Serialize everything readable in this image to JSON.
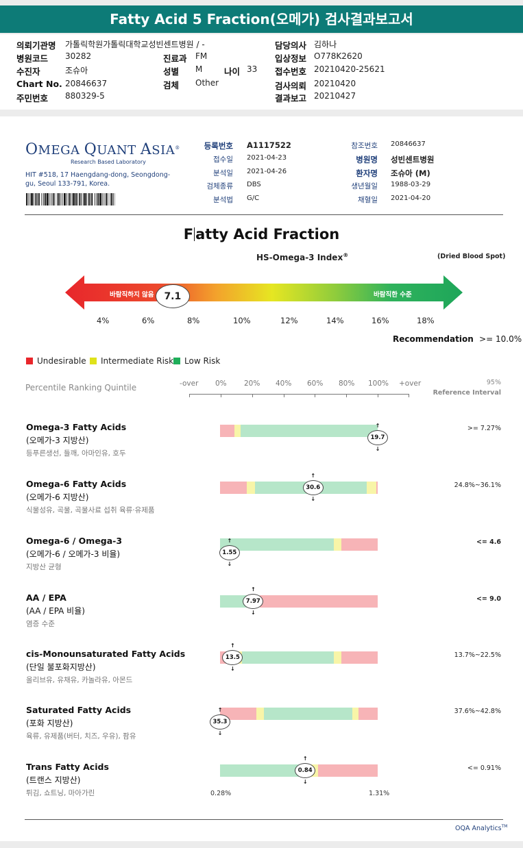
{
  "title": "Fatty Acid 5 Fraction(오메가) 검사결과보고서",
  "patient_info": {
    "left": [
      {
        "label": "의뢰기관명",
        "value": "가톨릭학원가톨릭대학교성빈센트병원 / -"
      },
      {
        "label": "병원코드",
        "value": "30282"
      },
      {
        "label": "수진자",
        "value": "조슈아"
      },
      {
        "label": "Chart No.",
        "value": "20846637"
      },
      {
        "label": "주민번호",
        "value": "880329-5"
      }
    ],
    "dept": {
      "label": "진료과",
      "value": "FM"
    },
    "sex": {
      "label": "성별",
      "value": "M"
    },
    "age": {
      "label": "나이",
      "value": "33"
    },
    "specimen": {
      "label": "검체",
      "value": "Other"
    },
    "right": [
      {
        "label": "담당의사",
        "value": "김하나"
      },
      {
        "label": "입상정보",
        "value": "O778K2620"
      },
      {
        "label": "접수번호",
        "value": "20210420-25621"
      },
      {
        "label": "검사의뢰",
        "value": "20210420"
      },
      {
        "label": "결과보고",
        "value": "20210427"
      }
    ]
  },
  "lab": {
    "logo_big1": "O",
    "logo_small1": "MEGA ",
    "logo_big2": "Q",
    "logo_small2": "UANT ",
    "logo_big3": "A",
    "logo_small3": "SIA",
    "logo_mark": "®",
    "subtitle": "Research Based Laboratory",
    "address": "HIT #518, 17 Haengdang-dong, Seongdong-gu, Seoul 133-791, Korea."
  },
  "meta_left": [
    {
      "label": "등록번호",
      "value": "A1117522",
      "bold": true
    },
    {
      "label": "접수일",
      "value": "2021-04-23",
      "bold": false
    },
    {
      "label": "분석일",
      "value": "2021-04-26",
      "bold": false
    },
    {
      "label": "검체종류",
      "value": "DBS",
      "bold": false
    },
    {
      "label": "분석법",
      "value": "G/C",
      "bold": false
    }
  ],
  "meta_right": [
    {
      "label": "참조번호",
      "value": "20846637",
      "bold": false
    },
    {
      "label": "병원명",
      "value": "성빈센트병원",
      "bold": true
    },
    {
      "label": "환자명",
      "value": "조슈아 (M)",
      "bold": true
    },
    {
      "label": "생년월일",
      "value": "1988-03-29",
      "bold": false
    },
    {
      "label": "채혈일",
      "value": "2021-04-20",
      "bold": false
    }
  ],
  "fa_title_a": "F",
  "fa_title_b": "atty Acid Fraction",
  "hs_index": {
    "title": "HS-Omega-3 Index",
    "title_mark": "®",
    "sample": "(Dried Blood Spot)",
    "value": 7.1,
    "value_label": "7.1",
    "left_label": "바람직하지 않음",
    "right_label": "바람직한 수준",
    "scale_min": 3,
    "scale_max": 19,
    "ticks": [
      "4%",
      "6%",
      "8%",
      "10%",
      "12%",
      "14%",
      "16%",
      "18%"
    ],
    "recommendation_label": "Recommendation",
    "recommendation_value": ">= 10.0%"
  },
  "legend": [
    {
      "label": "Undesirable",
      "color": "#e8262b"
    },
    {
      "label": "Intermediate Risk",
      "color": "#dfe21a"
    },
    {
      "label": "Low Risk",
      "color": "#1fae5a"
    }
  ],
  "percentile": {
    "label": "Percentile Ranking Quintile",
    "scale": [
      "-over",
      "0%",
      "20%",
      "40%",
      "60%",
      "80%",
      "100%",
      "+over"
    ],
    "ref_95": "95%",
    "ref_label": "Reference Interval"
  },
  "colors": {
    "red": "#f7b4b7",
    "yellow": "#f8f5a8",
    "green": "#b6e6c9"
  },
  "results": [
    {
      "title": "Omega-3 Fatty Acids",
      "sub": "(오메가-3 지방산)",
      "examples": "등푸른생선, 들깨, 아마인유, 호두",
      "value_label": "19.7",
      "marker_pct": 100,
      "ref": ">= 7.27%",
      "ref_bold": false,
      "segments": [
        {
          "c": "red",
          "w": 9
        },
        {
          "c": "yellow",
          "w": 4
        },
        {
          "c": "green",
          "w": 87
        }
      ]
    },
    {
      "title": "Omega-6 Fatty Acids",
      "sub": "(오메가-6 지방산)",
      "examples": "식물성유, 곡물, 곡물사료 섭취 육류·유제품",
      "value_label": "30.6",
      "marker_pct": 59,
      "ref": "24.8%~36.1%",
      "ref_bold": false,
      "segments": [
        {
          "c": "red",
          "w": 17
        },
        {
          "c": "yellow",
          "w": 5
        },
        {
          "c": "green",
          "w": 71
        },
        {
          "c": "yellow",
          "w": 6
        },
        {
          "c": "red",
          "w": 1
        }
      ]
    },
    {
      "title": "Omega-6 / Omega-3",
      "sub": "(오메가-6 / 오메가-3 비율)",
      "examples": "지방산 균형",
      "value_label": "1.55",
      "marker_pct": 6,
      "ref": "<= 4.6",
      "ref_bold": true,
      "segments": [
        {
          "c": "green",
          "w": 72
        },
        {
          "c": "yellow",
          "w": 5
        },
        {
          "c": "red",
          "w": 23
        }
      ]
    },
    {
      "title": "AA / EPA",
      "sub": "(AA / EPA 비율)",
      "examples": "염증 수준",
      "value_label": "7.97",
      "marker_pct": 21,
      "ref": "<= 9.0",
      "ref_bold": true,
      "segments": [
        {
          "c": "green",
          "w": 21
        },
        {
          "c": "yellow",
          "w": 4
        },
        {
          "c": "red",
          "w": 75
        }
      ]
    },
    {
      "title": "cis-Monounsaturated Fatty Acids",
      "sub": "(단일 불포화지방산)",
      "examples": "올리브유, 유채유, 카놀라유, 아몬드",
      "value_label": "13.5",
      "marker_pct": 8,
      "ref": "13.7%~22.5%",
      "ref_bold": false,
      "segments": [
        {
          "c": "red",
          "w": 10
        },
        {
          "c": "yellow",
          "w": 4
        },
        {
          "c": "green",
          "w": 58
        },
        {
          "c": "yellow",
          "w": 5
        },
        {
          "c": "red",
          "w": 23
        }
      ]
    },
    {
      "title": "Saturated Fatty Acids",
      "sub": "(포화 지방산)",
      "examples": "육류, 유제품(버터, 치즈, 우유), 팜유",
      "value_label": "35.3",
      "marker_pct": 0,
      "ref": "37.6%~42.8%",
      "ref_bold": false,
      "segments": [
        {
          "c": "red",
          "w": 23
        },
        {
          "c": "yellow",
          "w": 5
        },
        {
          "c": "green",
          "w": 56
        },
        {
          "c": "yellow",
          "w": 4
        },
        {
          "c": "red",
          "w": 12
        }
      ]
    },
    {
      "title": "Trans Fatty Acids",
      "sub": "(트랜스 지방산)",
      "examples": "튀김, 쇼트닝, 마아가린",
      "value_label": "0.84",
      "marker_pct": 54,
      "ref": "<= 0.91%",
      "ref_bold": false,
      "segments": [
        {
          "c": "green",
          "w": 56
        },
        {
          "c": "yellow",
          "w": 6
        },
        {
          "c": "red",
          "w": 38
        }
      ]
    }
  ],
  "trans_scale": {
    "min": "0.28%",
    "max": "1.31%"
  },
  "footer": {
    "brand": "OQA Analytics",
    "mark": "TM"
  }
}
